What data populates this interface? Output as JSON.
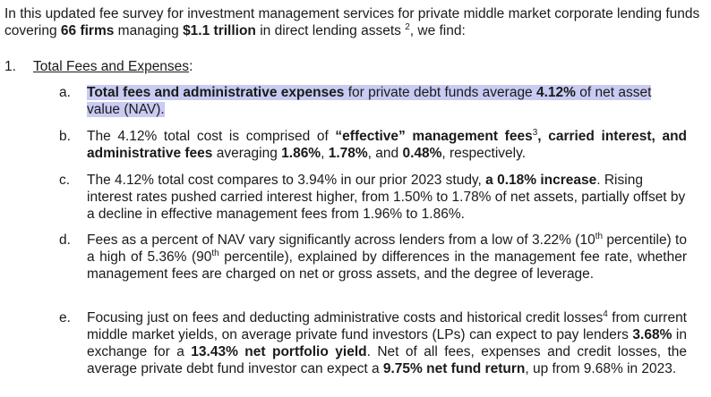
{
  "intro": {
    "t1": "In this updated fee survey for investment management services for private middle market corporate lending funds covering ",
    "b1": "66 firms",
    "t2": " managing ",
    "b2": "$1.1 trillion",
    "t3": " in direct lending assets ",
    "sup1": "2",
    "t4": ", we find:"
  },
  "section": {
    "number": "1.",
    "title": "Total Fees and Expenses",
    "colon": ":"
  },
  "items": {
    "a": {
      "letter": "a.",
      "b1": "Total fees and administrative expenses",
      "t1": " for private debt funds average ",
      "b2": "4.12%",
      "t2": " of net asset value (NAV)."
    },
    "b": {
      "letter": "b.",
      "t1": "The 4.12% total cost is comprised of ",
      "b1": "“effective” management fees",
      "sup1": "3",
      "b2": ", carried interest, and administrative fees",
      "t2": " averaging ",
      "b3": "1.86%",
      "t3": ", ",
      "b4": "1.78%",
      "t4": ", and ",
      "b5": "0.48%",
      "t5": ", respectively."
    },
    "c": {
      "letter": "c.",
      "t1": "The 4.12% total cost compares to 3.94% in our prior 2023 study, ",
      "b1": "a 0.18% increase",
      "t2": ". Rising interest rates pushed carried interest higher, from 1.50% to 1.78% of net assets, partially offset by a decline in effective management fees from 1.96% to 1.86%."
    },
    "d": {
      "letter": "d.",
      "t1": "Fees as a percent of NAV vary significantly across lenders from a low of 3.22% (10",
      "sup1": "th",
      "t2": " percentile) to a high of 5.36% (90",
      "sup2": "th",
      "t3": " percentile), explained by differences in the management fee rate, whether management fees are charged on net or gross assets, and the degree of leverage."
    },
    "e": {
      "letter": "e.",
      "t1": "Focusing just on fees and deducting administrative costs and historical credit losses",
      "sup1": "4",
      "t2": " from current middle market yields, on average private fund investors (LPs) can expect to pay lenders ",
      "b1": "3.68%",
      "t3": " in exchange for a ",
      "b2": "13.43% net portfolio yield",
      "t4": ". Net of all fees, expenses and credit losses, the average private debt fund investor can expect a ",
      "b3": "9.75% net fund return",
      "t5": ", up from 9.68% in 2023."
    }
  },
  "colors": {
    "highlight": "#c9cbf2",
    "text": "#1a1a1a"
  }
}
